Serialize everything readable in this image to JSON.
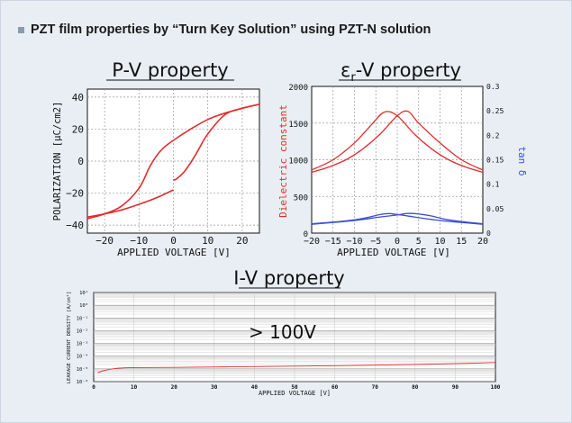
{
  "header": {
    "title": "PZT film properties by “Turn Key Solution” using PZT-N solution"
  },
  "annotation_text": "> 100V",
  "colors": {
    "background": "#e9eef4",
    "plot_background": "#ffffff",
    "red_series": "#e32b2b",
    "blue_series": "#3a4fd1",
    "grid": "#9a9a9a",
    "grid_fine": "#c8c8c8"
  },
  "chart_data": [
    {
      "type": "line",
      "title": "P-V property",
      "xlabel": "APPLIED VOLTAGE [V]",
      "ylabel": "POLARIZATION [μC/cm2]",
      "xlim": [
        -25,
        25
      ],
      "ylim": [
        -45,
        45
      ],
      "xticks": [
        -20,
        -10,
        0,
        10,
        20
      ],
      "xtick_labels": [
        "−20",
        "−10",
        "0",
        "10",
        "20"
      ],
      "yticks": [
        40,
        20,
        0,
        -20,
        -40
      ],
      "ytick_labels": [
        "40",
        "20",
        "0",
        "−20",
        "−40"
      ],
      "grid": true,
      "series": [
        {
          "x": [
            -25,
            -20,
            -15,
            -10,
            -7,
            -5,
            -3,
            0,
            5,
            10,
            15,
            20,
            25
          ],
          "y": [
            -36,
            -33,
            -28,
            -17,
            -4,
            3,
            8,
            13,
            20,
            26,
            30,
            33,
            35.5
          ]
        },
        {
          "x": [
            25,
            20,
            15,
            10,
            7,
            5,
            3,
            1,
            0
          ],
          "y": [
            35.5,
            33,
            29,
            17,
            6,
            -1,
            -7,
            -11,
            -12
          ]
        },
        {
          "x": [
            0,
            -5,
            -10,
            -15,
            -20,
            -25
          ],
          "y": [
            -18,
            -23,
            -27,
            -30.5,
            -33,
            -35
          ]
        }
      ]
    },
    {
      "type": "line",
      "title": "εr-V property",
      "title_main": "ε",
      "title_sub": "r",
      "title_suffix": "-V property",
      "xlabel": "APPLIED VOLTAGE [V]",
      "ylabel": "Dielectric constant",
      "ylabel_right": "tan δ",
      "xlim": [
        -20,
        20
      ],
      "ylim": [
        0,
        2000
      ],
      "ylim_right": [
        0,
        0.3
      ],
      "xticks": [
        -20,
        -15,
        -10,
        -5,
        0,
        5,
        10,
        15,
        20
      ],
      "xtick_labels": [
        "−20",
        "−15",
        "−10",
        "−5",
        "0",
        "5",
        "10",
        "15",
        "20"
      ],
      "yticks": [
        2000,
        1500,
        1000,
        500,
        0
      ],
      "ytick_labels": [
        "2000",
        "1500",
        "1000",
        "500",
        "0"
      ],
      "yticks_right": [
        0.3,
        0.25,
        0.2,
        0.15,
        0.1,
        0.05,
        0
      ],
      "ytick_labels_right": [
        "0.3",
        "0.25",
        "0.2",
        "0.15",
        "0.1",
        "0.05",
        "0"
      ],
      "grid": true,
      "series": [
        {
          "axis": "left",
          "x": [
            -20,
            -15,
            -10,
            -6,
            -3,
            0,
            4,
            8,
            12,
            16,
            20
          ],
          "y": [
            860,
            1000,
            1230,
            1480,
            1650,
            1600,
            1350,
            1150,
            1000,
            900,
            830
          ]
        },
        {
          "axis": "left",
          "x": [
            -20,
            -16,
            -12,
            -8,
            -4,
            0,
            2.5,
            5,
            10,
            15,
            20
          ],
          "y": [
            830,
            900,
            1000,
            1150,
            1350,
            1600,
            1660,
            1500,
            1230,
            1000,
            860
          ]
        },
        {
          "axis": "right",
          "x": [
            -20,
            -12,
            -8,
            -4,
            -2,
            0,
            4,
            8,
            12,
            20
          ],
          "y": [
            0.019,
            0.025,
            0.03,
            0.038,
            0.04,
            0.038,
            0.033,
            0.028,
            0.024,
            0.018
          ]
        },
        {
          "axis": "right",
          "x": [
            -20,
            -12,
            -8,
            -4,
            0,
            2,
            4,
            8,
            12,
            20
          ],
          "y": [
            0.018,
            0.024,
            0.028,
            0.033,
            0.037,
            0.04,
            0.04,
            0.035,
            0.027,
            0.019
          ]
        }
      ]
    },
    {
      "type": "line",
      "title": "I-V property",
      "xlabel": "APPLIED VOLTAGE [V]",
      "ylabel": "LEAKAGE CURRENT DENSITY [A/cm²]",
      "xlim": [
        0,
        100
      ],
      "ylim_log10": [
        -6,
        1
      ],
      "xticks": [
        0,
        10,
        20,
        30,
        40,
        50,
        60,
        70,
        80,
        90,
        100
      ],
      "xtick_labels": [
        "0",
        "10",
        "20",
        "30",
        "40",
        "50",
        "60",
        "70",
        "80",
        "90",
        "100"
      ],
      "yticks_log10": [
        1,
        0,
        -1,
        -2,
        -3,
        -4,
        -5,
        -6
      ],
      "ytick_labels": [
        "10¹",
        "10⁰",
        "10⁻¹",
        "10⁻²",
        "10⁻³",
        "10⁻⁴",
        "10⁻⁵",
        "10⁻⁶"
      ],
      "grid": true,
      "series": [
        {
          "x": [
            1,
            3,
            6,
            10,
            20,
            40,
            60,
            80,
            95,
            100
          ],
          "y_log10": [
            -5.3,
            -5.1,
            -4.95,
            -4.9,
            -4.88,
            -4.82,
            -4.75,
            -4.65,
            -4.55,
            -4.5
          ]
        }
      ]
    }
  ]
}
